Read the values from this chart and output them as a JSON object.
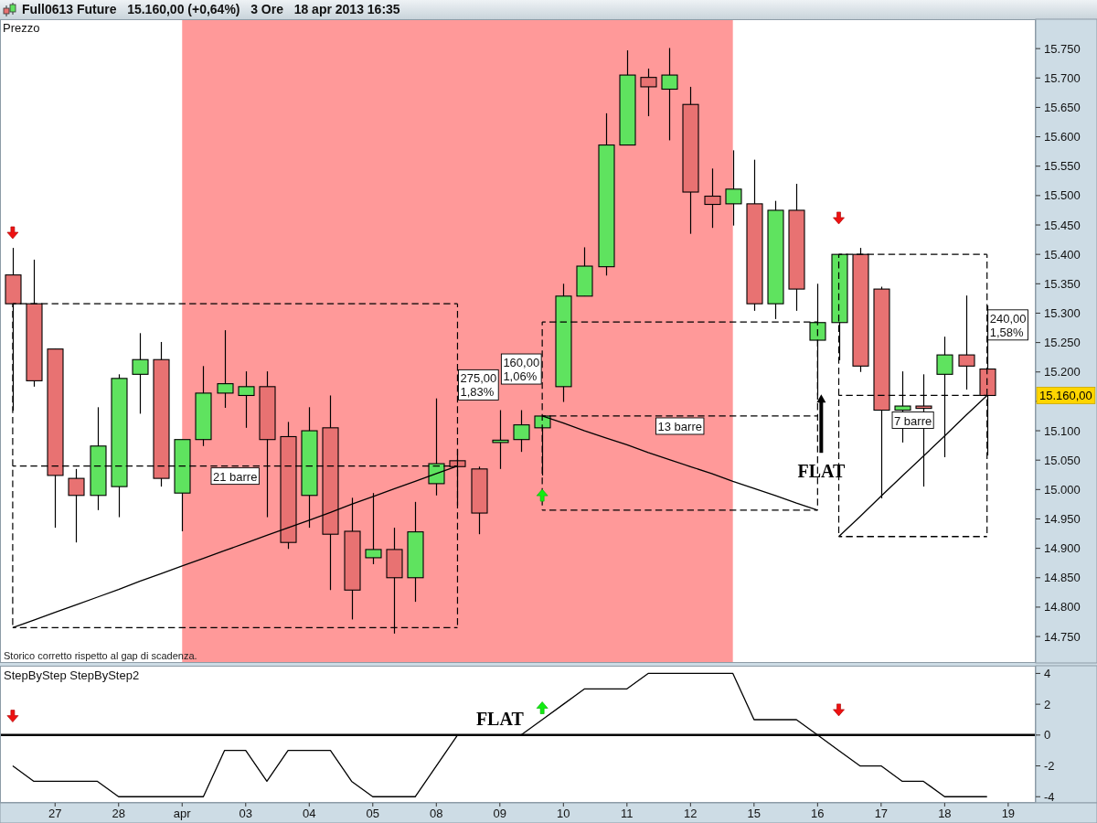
{
  "chart_data": [
    {
      "type": "candlestick",
      "title": "Full0613 Future   15.160,00 (+0,64%)   3 Ore   18 apr 2013 16:35",
      "subtitle": "Prezzo",
      "categories": [
        null,
        null,
        null,
        null,
        null,
        null,
        null,
        null,
        null,
        null,
        null,
        null,
        null,
        null,
        null,
        null,
        null,
        null,
        null,
        null,
        null,
        null,
        null,
        null,
        null,
        null,
        null,
        null,
        null,
        null,
        null,
        null,
        null,
        null,
        null,
        null,
        null,
        null,
        null,
        null,
        null,
        null,
        null,
        null,
        null,
        null,
        null,
        null
      ],
      "ohlc": [
        [
          15365,
          15411,
          15134,
          15316
        ],
        [
          15316,
          15391,
          15175,
          15185
        ],
        [
          15239,
          15239,
          14935,
          15024
        ],
        [
          15019,
          15035,
          14910,
          14990
        ],
        [
          14990,
          15140,
          14965,
          15074
        ],
        [
          15005,
          15196,
          14953,
          15189
        ],
        [
          15196,
          15266,
          15129,
          15221
        ],
        [
          15221,
          15251,
          15005,
          15019
        ],
        [
          14994,
          15085,
          14929,
          15085
        ],
        [
          15085,
          15210,
          15074,
          15164
        ],
        [
          15164,
          15271,
          15139,
          15180
        ],
        [
          15160,
          15201,
          15105,
          15175
        ],
        [
          15175,
          15201,
          14953,
          15085
        ],
        [
          15090,
          15115,
          14899,
          14910
        ],
        [
          14990,
          15140,
          14935,
          15100
        ],
        [
          15105,
          15160,
          14829,
          14924
        ],
        [
          14929,
          14986,
          14779,
          14829
        ],
        [
          14884,
          14994,
          14873,
          14898
        ],
        [
          14898,
          14935,
          14755,
          14850
        ],
        [
          14850,
          14979,
          14809,
          14928
        ],
        [
          15010,
          15155,
          14990,
          15044
        ],
        [
          15049,
          15068,
          14973,
          15039
        ],
        [
          15035,
          15039,
          14924,
          14960
        ],
        [
          15080,
          15135,
          15035,
          15084
        ],
        [
          15085,
          15135,
          15064,
          15110
        ],
        [
          15105,
          15125,
          15024,
          15125
        ],
        [
          15175,
          15350,
          15149,
          15329
        ],
        [
          15329,
          15412,
          15329,
          15380
        ],
        [
          15379,
          15640,
          15364,
          15586
        ],
        [
          15586,
          15747,
          15586,
          15705
        ],
        [
          15701,
          15716,
          15635,
          15685
        ],
        [
          15681,
          15751,
          15594,
          15705
        ],
        [
          15655,
          15685,
          15435,
          15506
        ],
        [
          15499,
          15546,
          15445,
          15485
        ],
        [
          15486,
          15577,
          15449,
          15511
        ],
        [
          15486,
          15561,
          15304,
          15316
        ],
        [
          15316,
          15491,
          15290,
          15475
        ],
        [
          15475,
          15520,
          15304,
          15341
        ],
        [
          15254,
          15350,
          15160,
          15284
        ],
        [
          15284,
          15400,
          15220,
          15400
        ],
        [
          15400,
          15411,
          15200,
          15210
        ],
        [
          15341,
          15345,
          14985,
          15135
        ],
        [
          15135,
          15201,
          15080,
          15142
        ],
        [
          15142,
          15196,
          15005,
          15138
        ],
        [
          15196,
          15260,
          15055,
          15229
        ],
        [
          15229,
          15330,
          15170,
          15210
        ],
        [
          15205,
          15313,
          15058,
          15160
        ],
        null
      ],
      "colors": [
        "#e87272",
        "#e87272",
        "#e87272",
        "#e87272",
        "#5fe35f",
        "#5fe35f",
        "#5fe35f",
        "#e87272",
        "#5fe35f",
        "#5fe35f",
        "#5fe35f",
        "#5fe35f",
        "#e87272",
        "#e87272",
        "#5fe35f",
        "#e87272",
        "#e87272",
        "#5fe35f",
        "#e87272",
        "#5fe35f",
        "#5fe35f",
        "#e87272",
        "#e87272",
        "#5fe35f",
        "#5fe35f",
        "#5fe35f",
        "#5fe35f",
        "#5fe35f",
        "#5fe35f",
        "#5fe35f",
        "#e87272",
        "#5fe35f",
        "#e87272",
        "#e87272",
        "#5fe35f",
        "#e87272",
        "#5fe35f",
        "#e87272",
        "#5fe35f",
        "#5fe35f",
        "#e87272",
        "#e87272",
        "#5fe35f",
        "#e87272",
        "#5fe35f",
        "#e87272",
        "#e87272",
        null
      ],
      "tick_labels": "y",
      "ylim": [
        14705,
        15800
      ],
      "yticks": [
        {
          "value": 14750,
          "label": "14.750"
        },
        {
          "value": 14800,
          "label": "14.800"
        },
        {
          "value": 14850,
          "label": "14.850"
        },
        {
          "value": 14900,
          "label": "14.900"
        },
        {
          "value": 14950,
          "label": "14.950"
        },
        {
          "value": 15000,
          "label": "15.000"
        },
        {
          "value": 15050,
          "label": "15.050"
        },
        {
          "value": 15100,
          "label": "15.100"
        },
        {
          "value": 15150,
          "label": null
        },
        {
          "value": 15200,
          "label": "15.200"
        },
        {
          "value": 15250,
          "label": "15.250"
        },
        {
          "value": 15300,
          "label": "15.300"
        },
        {
          "value": 15350,
          "label": "15.350"
        },
        {
          "value": 15400,
          "label": "15.400"
        },
        {
          "value": 15450,
          "label": "15.450"
        },
        {
          "value": 15500,
          "label": "15.500"
        },
        {
          "value": 15550,
          "label": "15.550"
        },
        {
          "value": 15600,
          "label": "15.600"
        },
        {
          "value": 15650,
          "label": "15.650"
        },
        {
          "value": 15700,
          "label": "15.700"
        },
        {
          "value": 15750,
          "label": "15.750"
        }
      ],
      "series": [
        {
          "type": "line",
          "color": "#000000",
          "line_style": "dashed",
          "values": [
            15316,
            15316,
            15316,
            15316,
            15316,
            15316,
            15316,
            15316,
            15316,
            15316,
            15316,
            15316,
            15316,
            15316,
            15316,
            15316,
            15316,
            15316,
            15316,
            15316,
            15316,
            15316,
            null,
            null,
            null,
            null,
            null,
            null,
            null,
            null,
            null,
            null,
            null,
            null,
            null,
            null,
            null,
            null,
            null,
            null,
            null,
            null,
            null,
            null,
            null,
            null,
            null,
            null
          ]
        },
        {
          "type": "line",
          "color": "#000000",
          "line_style": "dashed",
          "values": [
            14765,
            14765,
            14765,
            14765,
            14765,
            14765,
            14765,
            14765,
            14765,
            14765,
            14765,
            14765,
            14765,
            14765,
            14765,
            14765,
            14765,
            14765,
            14765,
            14765,
            14765,
            14765,
            null,
            null,
            null,
            null,
            null,
            null,
            null,
            null,
            null,
            null,
            null,
            null,
            null,
            null,
            null,
            null,
            null,
            null,
            null,
            null,
            null,
            null,
            null,
            null,
            null,
            null
          ]
        },
        {
          "type": "line",
          "color": "#000000",
          "line_style": "dashed",
          "values": [
            15040,
            15040,
            15040,
            15040,
            15040,
            15040,
            15040,
            15040,
            15040,
            15040,
            15040,
            15040,
            15040,
            15040,
            15040,
            15040,
            15040,
            15040,
            15040,
            15040,
            15040,
            15040,
            null,
            null,
            null,
            null,
            null,
            null,
            null,
            null,
            null,
            null,
            null,
            null,
            null,
            null,
            null,
            null,
            null,
            null,
            null,
            null,
            null,
            null,
            null,
            null,
            null,
            null
          ],
          "errors": [
            [
              14765,
              15316
            ],
            null,
            null,
            null,
            null,
            null,
            null,
            null,
            null,
            null,
            null,
            null,
            null,
            null,
            null,
            null,
            null,
            null,
            null,
            null,
            null,
            [
              14765,
              15316
            ],
            null,
            null,
            null,
            null,
            null,
            null,
            null,
            null,
            null,
            null,
            null,
            null,
            null,
            null,
            null,
            null,
            null,
            null,
            null,
            null,
            null,
            null,
            null,
            null,
            null,
            null
          ]
        },
        {
          "type": "line",
          "color": "#000000",
          "values": [
            14765,
            14778,
            14791,
            14804,
            14817,
            14830,
            14844,
            14857,
            14870,
            14883,
            14896,
            14909,
            14922,
            14935,
            14948,
            14961,
            14975,
            14988,
            15001,
            15014,
            15027,
            15040,
            null,
            null,
            null,
            null,
            null,
            null,
            null,
            null,
            null,
            null,
            null,
            null,
            null,
            null,
            null,
            null,
            null,
            null,
            null,
            null,
            null,
            null,
            null,
            null,
            null,
            null
          ]
        },
        {
          "type": "line",
          "color": "#000000",
          "line_style": "dashed",
          "values": [
            null,
            null,
            null,
            null,
            null,
            null,
            null,
            null,
            null,
            null,
            null,
            null,
            null,
            null,
            null,
            null,
            null,
            null,
            null,
            null,
            null,
            null,
            null,
            null,
            null,
            15285,
            15285,
            15285,
            15285,
            15285,
            15285,
            15285,
            15285,
            15285,
            15285,
            15285,
            15285,
            15285,
            15285,
            null,
            null,
            null,
            null,
            null,
            null,
            null,
            null,
            null
          ]
        },
        {
          "type": "line",
          "color": "#000000",
          "line_style": "dashed",
          "values": [
            null,
            null,
            null,
            null,
            null,
            null,
            null,
            null,
            null,
            null,
            null,
            null,
            null,
            null,
            null,
            null,
            null,
            null,
            null,
            null,
            null,
            null,
            null,
            null,
            null,
            14965,
            14965,
            14965,
            14965,
            14965,
            14965,
            14965,
            14965,
            14965,
            14965,
            14965,
            14965,
            14965,
            14965,
            null,
            null,
            null,
            null,
            null,
            null,
            null,
            null,
            null
          ]
        },
        {
          "type": "line",
          "color": "#000000",
          "line_style": "dashed",
          "values": [
            null,
            null,
            null,
            null,
            null,
            null,
            null,
            null,
            null,
            null,
            null,
            null,
            null,
            null,
            null,
            null,
            null,
            null,
            null,
            null,
            null,
            null,
            null,
            null,
            null,
            15125,
            15125,
            15125,
            15125,
            15125,
            15125,
            15125,
            15125,
            15125,
            15125,
            15125,
            15125,
            15125,
            15125,
            null,
            null,
            null,
            null,
            null,
            null,
            null,
            null,
            null
          ],
          "errors": [
            null,
            null,
            null,
            null,
            null,
            null,
            null,
            null,
            null,
            null,
            null,
            null,
            null,
            null,
            null,
            null,
            null,
            null,
            null,
            null,
            null,
            null,
            null,
            null,
            null,
            [
              14965,
              15285
            ],
            null,
            null,
            null,
            null,
            null,
            null,
            null,
            null,
            null,
            null,
            null,
            null,
            [
              14965,
              15285
            ],
            null,
            null,
            null,
            null,
            null,
            null,
            null,
            null,
            null
          ]
        },
        {
          "type": "line",
          "color": "#000000",
          "values": [
            null,
            null,
            null,
            null,
            null,
            null,
            null,
            null,
            null,
            null,
            null,
            null,
            null,
            null,
            null,
            null,
            null,
            null,
            null,
            null,
            null,
            null,
            null,
            null,
            null,
            15125,
            15113,
            15100,
            15088,
            15076,
            15063,
            15051,
            15039,
            15027,
            15014,
            15002,
            14990,
            14977,
            14965,
            null,
            null,
            null,
            null,
            null,
            null,
            null,
            null,
            null
          ]
        },
        {
          "type": "line",
          "color": "#000000",
          "line_style": "dashed",
          "values": [
            null,
            null,
            null,
            null,
            null,
            null,
            null,
            null,
            null,
            null,
            null,
            null,
            null,
            null,
            null,
            null,
            null,
            null,
            null,
            null,
            null,
            null,
            null,
            null,
            null,
            null,
            null,
            null,
            null,
            null,
            null,
            null,
            null,
            null,
            null,
            null,
            null,
            null,
            null,
            15400,
            15400,
            15400,
            15400,
            15400,
            15400,
            15400,
            15400,
            null
          ]
        },
        {
          "type": "line",
          "color": "#000000",
          "line_style": "dashed",
          "values": [
            null,
            null,
            null,
            null,
            null,
            null,
            null,
            null,
            null,
            null,
            null,
            null,
            null,
            null,
            null,
            null,
            null,
            null,
            null,
            null,
            null,
            null,
            null,
            null,
            null,
            null,
            null,
            null,
            null,
            null,
            null,
            null,
            null,
            null,
            null,
            null,
            null,
            null,
            null,
            14920,
            14920,
            14920,
            14920,
            14920,
            14920,
            14920,
            14920,
            null
          ]
        },
        {
          "type": "line",
          "color": "#000000",
          "line_style": "dashed",
          "values": [
            null,
            null,
            null,
            null,
            null,
            null,
            null,
            null,
            null,
            null,
            null,
            null,
            null,
            null,
            null,
            null,
            null,
            null,
            null,
            null,
            null,
            null,
            null,
            null,
            null,
            null,
            null,
            null,
            null,
            null,
            null,
            null,
            null,
            null,
            null,
            null,
            null,
            null,
            null,
            15160,
            15160,
            15160,
            15160,
            15160,
            15160,
            15160,
            15160,
            null
          ],
          "errors": [
            null,
            null,
            null,
            null,
            null,
            null,
            null,
            null,
            null,
            null,
            null,
            null,
            null,
            null,
            null,
            null,
            null,
            null,
            null,
            null,
            null,
            null,
            null,
            null,
            null,
            null,
            null,
            null,
            null,
            null,
            null,
            null,
            null,
            null,
            null,
            null,
            null,
            null,
            null,
            [
              14920,
              15400
            ],
            null,
            null,
            null,
            null,
            null,
            null,
            [
              14920,
              15400
            ],
            null
          ]
        },
        {
          "type": "line",
          "color": "#000000",
          "values": [
            null,
            null,
            null,
            null,
            null,
            null,
            null,
            null,
            null,
            null,
            null,
            null,
            null,
            null,
            null,
            null,
            null,
            null,
            null,
            null,
            null,
            null,
            null,
            null,
            null,
            null,
            null,
            null,
            null,
            null,
            null,
            null,
            null,
            null,
            null,
            null,
            null,
            null,
            null,
            14920,
            14954,
            14989,
            15023,
            15057,
            15091,
            15126,
            15160,
            null
          ]
        },
        {
          "type": "scatter",
          "color": "#ee1111",
          "marker": "triangle",
          "values": [
            15436,
            null,
            null,
            null,
            null,
            null,
            null,
            null,
            null,
            null,
            null,
            null,
            null,
            null,
            null,
            null,
            null,
            null,
            null,
            null,
            null,
            null,
            null,
            null,
            null,
            null,
            null,
            null,
            null,
            null,
            null,
            null,
            null,
            null,
            null,
            null,
            null,
            null,
            null,
            15461,
            null,
            null,
            null,
            null,
            null,
            null,
            null,
            null
          ]
        },
        {
          "type": "scatter",
          "color": "#11ee11",
          "marker": "triangle",
          "values": [
            null,
            null,
            null,
            null,
            null,
            null,
            null,
            null,
            null,
            null,
            null,
            null,
            null,
            null,
            null,
            null,
            null,
            null,
            null,
            null,
            null,
            null,
            null,
            null,
            null,
            14991,
            null,
            null,
            null,
            null,
            null,
            null,
            null,
            null,
            null,
            null,
            null,
            null,
            null,
            null,
            null,
            null,
            null,
            null,
            null,
            null,
            null,
            null
          ]
        }
      ],
      "annotations": [
        "Storico corretto rispetto al gap di scadenza.",
        "15.160,00",
        "21 barre",
        "275,00\n1,83%",
        "13 barre",
        "160,00\n1,06%",
        "7 barre",
        "240,00\n1,58%",
        "FLAT"
      ]
    },
    {
      "type": "line",
      "title": "StepByStep StepByStep2",
      "categories": [
        null,
        null,
        "27",
        null,
        null,
        "28",
        null,
        null,
        "apr",
        null,
        null,
        "03",
        null,
        null,
        "04",
        null,
        null,
        "05",
        null,
        null,
        "08",
        null,
        null,
        "09",
        null,
        null,
        "10",
        null,
        null,
        "11",
        null,
        null,
        "12",
        null,
        null,
        "15",
        null,
        null,
        "16",
        null,
        null,
        "17",
        null,
        null,
        "18",
        null,
        null,
        "19"
      ],
      "series": [
        {
          "color": "#000000",
          "values": [
            -2,
            -3,
            -3,
            -3,
            -3,
            -4,
            -4,
            -4,
            -4,
            -4,
            -1,
            -1,
            -3,
            -1,
            -1,
            -1,
            -3,
            -4,
            -4,
            -4,
            -2,
            0,
            0,
            0,
            0,
            1,
            2,
            3,
            3,
            3,
            4,
            4,
            4,
            4,
            4,
            1,
            1,
            1,
            0,
            -1,
            -2,
            -2,
            -3,
            -3,
            -4,
            -4,
            -4,
            null
          ]
        },
        {
          "type": "scatter",
          "color": "#ee1111",
          "marker": "triangle",
          "values": [
            1.2,
            null,
            null,
            null,
            null,
            null,
            null,
            null,
            null,
            null,
            null,
            null,
            null,
            null,
            null,
            null,
            null,
            null,
            null,
            null,
            null,
            null,
            null,
            null,
            null,
            null,
            null,
            null,
            null,
            null,
            null,
            null,
            null,
            null,
            null,
            null,
            null,
            null,
            null,
            1.6,
            null,
            null,
            null,
            null,
            null,
            null,
            null,
            null
          ]
        },
        {
          "type": "scatter",
          "color": "#11ee11",
          "marker": "triangle",
          "values": [
            null,
            null,
            null,
            null,
            null,
            null,
            null,
            null,
            null,
            null,
            null,
            null,
            null,
            null,
            null,
            null,
            null,
            null,
            null,
            null,
            null,
            null,
            null,
            null,
            null,
            1.8,
            null,
            null,
            null,
            null,
            null,
            null,
            null,
            null,
            null,
            null,
            null,
            null,
            null,
            null,
            null,
            null,
            null,
            null,
            null,
            null,
            null,
            null
          ]
        }
      ],
      "ylim": [
        -4.4,
        4.5
      ],
      "yticks": [
        4,
        2,
        0,
        -2,
        -4
      ],
      "ref_lines": [
        {
          "axis": "y",
          "value": 0,
          "color": "#000000"
        }
      ],
      "annotations": [
        {
          "text": "FLAT",
          "x": "09",
          "y": 0
        }
      ]
    }
  ]
}
